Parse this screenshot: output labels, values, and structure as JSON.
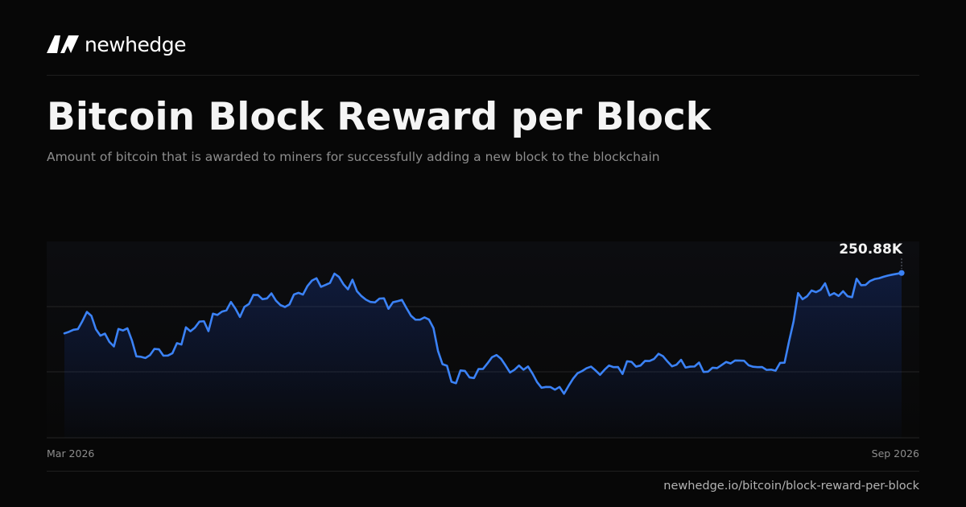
{
  "brand": {
    "name": "newhedge",
    "logo_icon": "newhedge-logo-icon"
  },
  "header": {
    "title": "Bitcoin Block Reward per Block",
    "subtitle": "Amount of bitcoin that is awarded to miners for successfully adding a new block to the blockchain"
  },
  "footer": {
    "source": "newhedge.io/bitcoin/block-reward-per-block"
  },
  "colors": {
    "background": "#070707",
    "line": "#3b82f6",
    "grid": "#242424",
    "text_primary": "#f4f4f4",
    "text_muted": "#8d8d8d"
  },
  "chart_data": {
    "type": "line",
    "title": "",
    "xlabel": "",
    "ylabel": "",
    "x_range": [
      "Mar 2026",
      "Sep 2026"
    ],
    "x_labels": [
      "Mar 2026",
      "Sep 2026"
    ],
    "grid": true,
    "y_tick_labels_shown": false,
    "last_value_label": "250.88K",
    "last_value": 250.88,
    "ylim": [
      130,
      274
    ],
    "series": [
      {
        "name": "",
        "values": [
          206.6,
          207.7,
          209.2,
          209.7,
          215.6,
          222.3,
          219.4,
          209.6,
          204.9,
          206.4,
          200.3,
          197.0,
          209.8,
          208.7,
          210.3,
          201.4,
          189.7,
          189.4,
          188.5,
          190.6,
          195.2,
          194.9,
          190.2,
          190.3,
          192.0,
          199.4,
          198.4,
          211.0,
          208.1,
          210.8,
          215.2,
          215.5,
          208.2,
          221.0,
          220.1,
          222.5,
          223.5,
          229.6,
          224.7,
          218.6,
          226.0,
          228.1,
          234.8,
          234.7,
          231.6,
          232.2,
          235.9,
          230.6,
          227.3,
          225.9,
          227.8,
          235.1,
          236.3,
          235.0,
          241.3,
          245.3,
          247.0,
          240.7,
          242.1,
          243.6,
          250.4,
          248.0,
          242.6,
          238.9,
          245.9,
          237.5,
          233.9,
          231.3,
          229.6,
          229.3,
          232.1,
          232.3,
          224.6,
          229.4,
          230.2,
          231.1,
          225.1,
          219.5,
          216.6,
          216.6,
          218.3,
          216.7,
          210.4,
          193.7,
          184.0,
          182.8,
          171.1,
          170.0,
          179.4,
          179.0,
          174.3,
          173.8,
          180.4,
          180.5,
          184.6,
          189.1,
          190.7,
          188.0,
          183.1,
          177.9,
          179.9,
          183.0,
          179.9,
          182.3,
          177.1,
          170.9,
          166.7,
          167.3,
          167.2,
          165.3,
          167.3,
          162.3,
          168.0,
          173.3,
          177.3,
          178.9,
          181.0,
          182.2,
          179.4,
          176.2,
          179.9,
          183.0,
          181.8,
          181.9,
          176.8,
          186.1,
          185.7,
          182.2,
          183.0,
          186.4,
          186.3,
          187.8,
          191.6,
          189.8,
          185.9,
          182.4,
          183.6,
          187.2,
          181.5,
          182.2,
          182.3,
          185.2,
          178.3,
          178.5,
          181.4,
          181.1,
          183.3,
          185.6,
          184.5,
          186.7,
          186.6,
          186.5,
          183.2,
          182.1,
          181.8,
          181.9,
          179.8,
          180.0,
          179.2,
          184.9,
          185.1,
          200.8,
          215.3,
          236.1,
          231.6,
          233.8,
          238.0,
          236.8,
          238.5,
          243.3,
          234.4,
          236.1,
          234.0,
          237.5,
          233.8,
          233.1,
          246.6,
          241.9,
          242.1,
          245.0,
          246.4,
          247.0,
          248.1,
          249.0,
          249.7,
          250.3,
          250.88
        ]
      }
    ]
  }
}
